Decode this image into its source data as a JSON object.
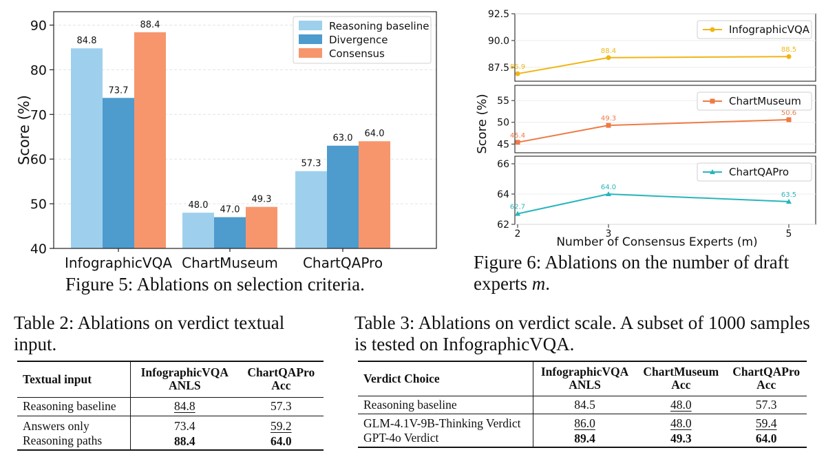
{
  "figure5": {
    "caption": "Figure 5: Ablations on selection criteria.",
    "chart_data": {
      "type": "bar",
      "categories": [
        "InfographicVQA",
        "ChartMuseum",
        "ChartQAPro"
      ],
      "series": [
        {
          "name": "Reasoning baseline",
          "values": [
            84.8,
            48.0,
            57.3
          ],
          "labels": [
            "84.8",
            "48.0",
            "57.3"
          ],
          "color": "#9ed0ee"
        },
        {
          "name": "Divergence",
          "values": [
            73.7,
            47.0,
            63.0
          ],
          "labels": [
            "73.7",
            "47.0",
            "63.0"
          ],
          "color": "#4e9bcd"
        },
        {
          "name": "Consensus",
          "values": [
            88.4,
            49.3,
            64.0
          ],
          "labels": [
            "88.4",
            "49.3",
            "64.0"
          ],
          "color": "#f7966d"
        }
      ],
      "ylabel": "Score (%)",
      "ylim": [
        40,
        93
      ],
      "yticks": [
        "40",
        "50",
        "60",
        "70",
        "80",
        "90"
      ],
      "grid": true,
      "legend": "top-right"
    }
  },
  "figure6": {
    "caption": "Figure 6:  Ablations on the number of draft experts",
    "caption_var": "m",
    "chart_data": [
      {
        "type": "line",
        "x": [
          2,
          3,
          5
        ],
        "series": [
          {
            "name": "InfographicVQA",
            "values": [
              86.9,
              88.4,
              88.5
            ],
            "labels": [
              "86.9",
              "88.4",
              "88.5"
            ],
            "color": "#f0b514",
            "marker": "circle"
          }
        ],
        "ylim": [
          86.2,
          92.5
        ],
        "yticks": [
          "87.5",
          "90.0",
          "92.5"
        ],
        "legend": "top-right"
      },
      {
        "type": "line",
        "x": [
          2,
          3,
          5
        ],
        "series": [
          {
            "name": "ChartMuseum",
            "values": [
              45.4,
              49.3,
              50.6
            ],
            "labels": [
              "45.4",
              "49.3",
              "50.6"
            ],
            "color": "#ee7a44",
            "marker": "square"
          }
        ],
        "ylim": [
          43,
          58.5
        ],
        "yticks": [
          "45",
          "50",
          "55"
        ],
        "legend": "top-right"
      },
      {
        "type": "line",
        "x": [
          2,
          3,
          5
        ],
        "series": [
          {
            "name": "ChartQAPro",
            "values": [
              62.7,
              64.0,
              63.5
            ],
            "labels": [
              "62.7",
              "64.0",
              "63.5"
            ],
            "color": "#27b5ba",
            "marker": "triangle"
          }
        ],
        "ylim": [
          62,
          66.5
        ],
        "yticks": [
          "62",
          "64",
          "66"
        ],
        "legend": "top-right"
      }
    ],
    "xticks": [
      "2",
      "3",
      "5"
    ],
    "xlabel": "Number of Consensus Experts (m)",
    "ylabel": "Score (%)"
  },
  "table2": {
    "caption": "Table 2:  Ablations on verdict textual input.",
    "header": {
      "col1": "Textual input",
      "col2a": "InfographicVQA",
      "col2b": "ANLS",
      "col3a": "ChartQAPro",
      "col3b": "Acc"
    },
    "rows": [
      {
        "label": "Reasoning baseline",
        "v1": "84.8",
        "v2": "57.3"
      },
      {
        "label": "Answers only",
        "v1": "73.4",
        "v2": "59.2"
      },
      {
        "label": "Reasoning paths",
        "v1": "88.4",
        "v2": "64.0"
      }
    ]
  },
  "table3": {
    "caption": "Table 3:  Ablations on verdict scale.  A subset of 1000 samples is tested on InfographicVQA.",
    "header": {
      "col1": "Verdict Choice",
      "col2a": "InfographicVQA",
      "col2b": "ANLS",
      "col3a": "ChartMuseum",
      "col3b": "Acc",
      "col4a": "ChartQAPro",
      "col4b": "Acc"
    },
    "rows": [
      {
        "label": "Reasoning baseline",
        "v1": "84.5",
        "v2": "48.0",
        "v3": "57.3"
      },
      {
        "label": "GLM-4.1V-9B-Thinking Verdict",
        "v1": "86.0",
        "v2": "48.0",
        "v3": "59.4"
      },
      {
        "label": "GPT-4o Verdict",
        "v1": "89.4",
        "v2": "49.3",
        "v3": "64.0"
      }
    ]
  }
}
